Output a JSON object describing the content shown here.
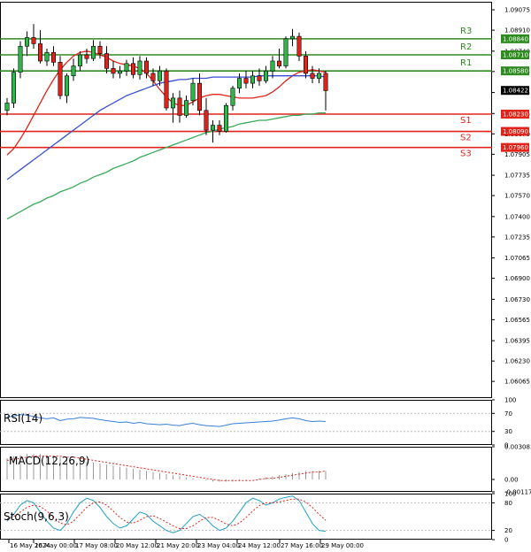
{
  "chart_data": [
    {
      "type": "candlestick",
      "title": "",
      "ylim": [
        1.0593,
        1.0914
      ],
      "y_tick_labels": [
        "1.09075",
        "1.08910",
        "1.08740",
        "1.08575",
        "1.08405",
        "1.08235",
        "1.08070",
        "1.07905",
        "1.07735",
        "1.07570",
        "1.07400",
        "1.07235",
        "1.07065",
        "1.06900",
        "1.06730",
        "1.06565",
        "1.06395",
        "1.06230",
        "1.06065"
      ],
      "x_tick_labels": [
        "16 May 2024",
        "16 May 00:00",
        "17 May 08:00",
        "20 May 12:00",
        "21 May 20:00",
        "23 May 04:00",
        "24 May 12:00",
        "27 May 16:00",
        "29 May 00:00"
      ],
      "levels": [
        {
          "name": "R3",
          "value": 1.0884,
          "label": "1.08840",
          "color": "#2e8b1f"
        },
        {
          "name": "R2",
          "value": 1.0871,
          "label": "1.08710",
          "color": "#2e8b1f"
        },
        {
          "name": "R1",
          "value": 1.0858,
          "label": "1.08580",
          "color": "#2e8b1f"
        },
        {
          "name": "S1",
          "value": 1.0823,
          "label": "1.08230",
          "color": "#e0241b"
        },
        {
          "name": "S2",
          "value": 1.0809,
          "label": "1.08090",
          "color": "#e0241b"
        },
        {
          "name": "S3",
          "value": 1.0796,
          "label": "1.07960",
          "color": "#e0241b"
        }
      ],
      "current_price": {
        "value": 1.08422,
        "label": "1.08422"
      },
      "candles": [
        {
          "o": 1.0826,
          "h": 1.0836,
          "l": 1.0822,
          "c": 1.0832
        },
        {
          "o": 1.0832,
          "h": 1.086,
          "l": 1.0828,
          "c": 1.0857
        },
        {
          "o": 1.0857,
          "h": 1.0882,
          "l": 1.0852,
          "c": 1.0878
        },
        {
          "o": 1.0878,
          "h": 1.089,
          "l": 1.087,
          "c": 1.0885
        },
        {
          "o": 1.0885,
          "h": 1.0896,
          "l": 1.0876,
          "c": 1.088
        },
        {
          "o": 1.088,
          "h": 1.0891,
          "l": 1.0864,
          "c": 1.0866
        },
        {
          "o": 1.0866,
          "h": 1.0876,
          "l": 1.0862,
          "c": 1.0873
        },
        {
          "o": 1.0873,
          "h": 1.0878,
          "l": 1.0862,
          "c": 1.0865
        },
        {
          "o": 1.0865,
          "h": 1.087,
          "l": 1.0835,
          "c": 1.0838
        },
        {
          "o": 1.0838,
          "h": 1.0856,
          "l": 1.0832,
          "c": 1.0854
        },
        {
          "o": 1.0854,
          "h": 1.0868,
          "l": 1.085,
          "c": 1.0862
        },
        {
          "o": 1.0862,
          "h": 1.0874,
          "l": 1.0858,
          "c": 1.0871
        },
        {
          "o": 1.0871,
          "h": 1.0876,
          "l": 1.0864,
          "c": 1.0868
        },
        {
          "o": 1.0868,
          "h": 1.0883,
          "l": 1.0866,
          "c": 1.0878
        },
        {
          "o": 1.0878,
          "h": 1.0882,
          "l": 1.0868,
          "c": 1.0872
        },
        {
          "o": 1.0872,
          "h": 1.0878,
          "l": 1.0856,
          "c": 1.086
        },
        {
          "o": 1.086,
          "h": 1.0866,
          "l": 1.0852,
          "c": 1.0856
        },
        {
          "o": 1.0856,
          "h": 1.0862,
          "l": 1.0852,
          "c": 1.0858
        },
        {
          "o": 1.0858,
          "h": 1.0867,
          "l": 1.0854,
          "c": 1.0864
        },
        {
          "o": 1.0864,
          "h": 1.0869,
          "l": 1.0852,
          "c": 1.0855
        },
        {
          "o": 1.0855,
          "h": 1.087,
          "l": 1.0851,
          "c": 1.0866
        },
        {
          "o": 1.0866,
          "h": 1.0869,
          "l": 1.0852,
          "c": 1.0856
        },
        {
          "o": 1.0856,
          "h": 1.086,
          "l": 1.0846,
          "c": 1.085
        },
        {
          "o": 1.085,
          "h": 1.0862,
          "l": 1.0846,
          "c": 1.0858
        },
        {
          "o": 1.0858,
          "h": 1.086,
          "l": 1.0826,
          "c": 1.0828
        },
        {
          "o": 1.0828,
          "h": 1.084,
          "l": 1.0816,
          "c": 1.0836
        },
        {
          "o": 1.0836,
          "h": 1.0842,
          "l": 1.0816,
          "c": 1.0822
        },
        {
          "o": 1.0822,
          "h": 1.0838,
          "l": 1.082,
          "c": 1.0834
        },
        {
          "o": 1.0834,
          "h": 1.0852,
          "l": 1.083,
          "c": 1.0848
        },
        {
          "o": 1.0848,
          "h": 1.0856,
          "l": 1.0822,
          "c": 1.0826
        },
        {
          "o": 1.0826,
          "h": 1.0836,
          "l": 1.0806,
          "c": 1.081
        },
        {
          "o": 1.081,
          "h": 1.0818,
          "l": 1.08,
          "c": 1.0814
        },
        {
          "o": 1.0814,
          "h": 1.0818,
          "l": 1.0806,
          "c": 1.0809
        },
        {
          "o": 1.0809,
          "h": 1.0832,
          "l": 1.0808,
          "c": 1.083
        },
        {
          "o": 1.083,
          "h": 1.0846,
          "l": 1.0826,
          "c": 1.0844
        },
        {
          "o": 1.0844,
          "h": 1.0856,
          "l": 1.084,
          "c": 1.0852
        },
        {
          "o": 1.0852,
          "h": 1.0858,
          "l": 1.0844,
          "c": 1.0848
        },
        {
          "o": 1.0848,
          "h": 1.0858,
          "l": 1.0844,
          "c": 1.0854
        },
        {
          "o": 1.0854,
          "h": 1.086,
          "l": 1.0846,
          "c": 1.085
        },
        {
          "o": 1.085,
          "h": 1.0862,
          "l": 1.0848,
          "c": 1.0858
        },
        {
          "o": 1.0858,
          "h": 1.087,
          "l": 1.0852,
          "c": 1.0866
        },
        {
          "o": 1.0866,
          "h": 1.0876,
          "l": 1.086,
          "c": 1.0862
        },
        {
          "o": 1.0862,
          "h": 1.0886,
          "l": 1.086,
          "c": 1.0884
        },
        {
          "o": 1.0884,
          "h": 1.0892,
          "l": 1.0878,
          "c": 1.0886
        },
        {
          "o": 1.0886,
          "h": 1.0889,
          "l": 1.0866,
          "c": 1.087
        },
        {
          "o": 1.087,
          "h": 1.0874,
          "l": 1.0852,
          "c": 1.0856
        },
        {
          "o": 1.0856,
          "h": 1.0862,
          "l": 1.0848,
          "c": 1.0852
        },
        {
          "o": 1.0852,
          "h": 1.086,
          "l": 1.0848,
          "c": 1.0856
        },
        {
          "o": 1.0856,
          "h": 1.0858,
          "l": 1.0826,
          "c": 1.0842
        }
      ],
      "overlays": [
        {
          "name": "fast-ma",
          "color": "#e0241b",
          "values": [
            1.079,
            1.0795,
            1.0803,
            1.0812,
            1.0822,
            1.0832,
            1.0842,
            1.0851,
            1.0859,
            1.0865,
            1.087,
            1.0873,
            1.0874,
            1.0873,
            1.0871,
            1.0869,
            1.0866,
            1.0864,
            1.0863,
            1.0862,
            1.086,
            1.0856,
            1.085,
            1.0843,
            1.0837,
            1.0832,
            1.083,
            1.083,
            1.0833,
            1.0836,
            1.0838,
            1.0839,
            1.0839,
            1.0838,
            1.0837,
            1.0836,
            1.0836,
            1.0836,
            1.0837,
            1.0838,
            1.0841,
            1.0845,
            1.085,
            1.0854,
            1.0857,
            1.0858,
            1.0859,
            1.0858,
            1.0857
          ]
        },
        {
          "name": "mid-ma",
          "color": "#3a4fd6",
          "values": [
            1.077,
            1.0774,
            1.0778,
            1.0782,
            1.0786,
            1.079,
            1.0794,
            1.0798,
            1.0802,
            1.0806,
            1.081,
            1.0814,
            1.0818,
            1.0822,
            1.0826,
            1.0829,
            1.0832,
            1.0835,
            1.0838,
            1.084,
            1.0842,
            1.0844,
            1.0846,
            1.0848,
            1.0849,
            1.085,
            1.0851,
            1.0851,
            1.0852,
            1.0852,
            1.0852,
            1.0853,
            1.0853,
            1.0853,
            1.0853,
            1.0853,
            1.0853,
            1.0853,
            1.0854,
            1.0854,
            1.0854,
            1.0854,
            1.0854,
            1.0854,
            1.0854,
            1.0854,
            1.0854,
            1.0854,
            1.0853
          ]
        },
        {
          "name": "slow-ma",
          "color": "#3aaa5a",
          "values": [
            1.0738,
            1.0741,
            1.0744,
            1.0747,
            1.075,
            1.0752,
            1.0755,
            1.0757,
            1.076,
            1.0762,
            1.0764,
            1.0767,
            1.0769,
            1.0772,
            1.0774,
            1.0776,
            1.0779,
            1.0781,
            1.0783,
            1.0785,
            1.0788,
            1.079,
            1.0792,
            1.0794,
            1.0796,
            1.0798,
            1.08,
            1.0802,
            1.0804,
            1.0806,
            1.0808,
            1.0809,
            1.0811,
            1.0812,
            1.0813,
            1.0815,
            1.0816,
            1.0817,
            1.0818,
            1.0818,
            1.0819,
            1.082,
            1.0821,
            1.0822,
            1.0822,
            1.0823,
            1.0823,
            1.0824,
            1.0824
          ]
        }
      ]
    },
    {
      "type": "line",
      "title": "RSI(14)",
      "ylim": [
        0,
        100
      ],
      "y_tick_labels": [
        "100",
        "70",
        "30",
        "0"
      ],
      "series": [
        {
          "name": "RSI(14)",
          "color": "#3a7fd6",
          "values": [
            62,
            64,
            67,
            66,
            63,
            60,
            58,
            60,
            54,
            57,
            58,
            61,
            60,
            59,
            56,
            54,
            52,
            50,
            51,
            48,
            50,
            47,
            46,
            45,
            46,
            44,
            43,
            46,
            48,
            45,
            43,
            42,
            41,
            44,
            47,
            48,
            49,
            50,
            51,
            52,
            53,
            55,
            58,
            60,
            58,
            54,
            52,
            53,
            52
          ]
        }
      ]
    },
    {
      "type": "bar",
      "title": "MACD(12,26,9)",
      "ylim": [
        -0.00117,
        0.003083
      ],
      "y_tick_labels": [
        "0.003083",
        "0.00",
        "-0.00117"
      ],
      "series": [
        {
          "name": "MACD(12,26,9)",
          "color": "#9a9a9a",
          "values": [
            0.002,
            0.0022,
            0.0023,
            0.0024,
            0.0024,
            0.0024,
            0.0023,
            0.0022,
            0.0021,
            0.002,
            0.0019,
            0.0018,
            0.0017,
            0.0016,
            0.0015,
            0.0014,
            0.0013,
            0.0012,
            0.0011,
            0.001,
            0.0009,
            0.0008,
            0.0007,
            0.0006,
            0.0005,
            0.0004,
            0.0003,
            0.0002,
            0.0001,
            0.0,
            -0.0001,
            -0.0002,
            -0.0002,
            -0.0002,
            -0.0002,
            -0.0001,
            -0.0001,
            0.0,
            0.0001,
            0.0002,
            0.0003,
            0.0004,
            0.0005,
            0.0006,
            0.0007,
            0.0008,
            0.0008,
            0.0008,
            0.0008
          ]
        },
        {
          "name": "signal",
          "type": "line",
          "color": "#e0241b",
          "values": [
            0.0018,
            0.0019,
            0.002,
            0.0021,
            0.0022,
            0.0022,
            0.0022,
            0.0022,
            0.0022,
            0.0021,
            0.0021,
            0.002,
            0.0019,
            0.0018,
            0.0017,
            0.0016,
            0.0015,
            0.0014,
            0.0013,
            0.0012,
            0.0011,
            0.001,
            0.0009,
            0.0008,
            0.0007,
            0.0006,
            0.0005,
            0.0004,
            0.0003,
            0.0002,
            0.0001,
            0.0,
            -0.0001,
            -0.0001,
            -0.0001,
            -0.0001,
            -0.0001,
            -0.0001,
            0.0,
            0.0001,
            0.0001,
            0.0002,
            0.0003,
            0.0004,
            0.0005,
            0.0006,
            0.0007,
            0.0007,
            0.0008
          ]
        }
      ]
    },
    {
      "type": "line",
      "title": "Stoch(9,6,3)",
      "ylim": [
        0,
        100
      ],
      "y_tick_labels": [
        "100",
        "80",
        "20",
        "0"
      ],
      "series": [
        {
          "name": "Stoch(9,6,3)",
          "color": "#1ea0c8",
          "values": [
            40,
            55,
            75,
            85,
            80,
            60,
            40,
            25,
            20,
            35,
            60,
            80,
            90,
            85,
            70,
            50,
            35,
            25,
            30,
            45,
            60,
            55,
            40,
            30,
            20,
            15,
            20,
            35,
            50,
            55,
            45,
            30,
            20,
            25,
            40,
            60,
            80,
            90,
            85,
            75,
            80,
            88,
            92,
            95,
            85,
            60,
            35,
            20,
            18
          ]
        },
        {
          "name": "signal",
          "color": "#e0241b",
          "dashed": true,
          "values": [
            45,
            50,
            60,
            70,
            75,
            72,
            62,
            48,
            36,
            32,
            40,
            55,
            70,
            80,
            82,
            75,
            62,
            48,
            38,
            36,
            42,
            50,
            52,
            46,
            38,
            30,
            24,
            24,
            30,
            40,
            48,
            48,
            42,
            34,
            30,
            36,
            48,
            62,
            74,
            80,
            80,
            82,
            85,
            88,
            88,
            82,
            70,
            55,
            42
          ]
        }
      ]
    }
  ]
}
